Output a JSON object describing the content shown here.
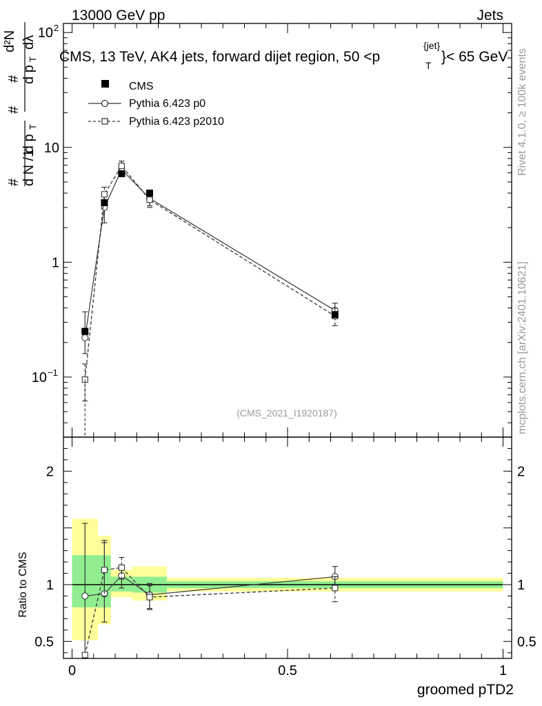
{
  "header": {
    "energy_label": "13000 GeV pp",
    "category_label": "Jets",
    "title_prefix": "CMS, 13 TeV, AK4 jets, forward dijet region, 50 <p",
    "title_sup": "{jet}",
    "title_sub": "T",
    "title_suffix": "}< 65 GeV",
    "analysis_tag": "(CMS_2021_I1920187)"
  },
  "side_labels": {
    "rivet": "Rivet 4.1.0, ≥ 100k events",
    "mcplots": "mcplots.cern.ch [arXiv:2401.10621]"
  },
  "chart_data": [
    {
      "type": "line",
      "scale": "log",
      "ylabel": "1/(dN/dpT) d²N/(dpT dλ)",
      "ylim": [
        0.03,
        120
      ],
      "xlim": [
        -0.02,
        1.02
      ],
      "yticks": [
        {
          "value": 100,
          "label": "10",
          "sup": "2"
        },
        {
          "value": 10,
          "label": "10",
          "sup": ""
        },
        {
          "value": 1,
          "label": "1",
          "sup": ""
        },
        {
          "value": 0.1,
          "label": "10",
          "sup": "−1"
        }
      ],
      "legend": [
        {
          "name": "CMS",
          "marker": "filled-square"
        },
        {
          "name": "Pythia 6.423 p0",
          "marker": "open-circle"
        },
        {
          "name": "Pythia 6.423 p2010",
          "marker": "open-square"
        }
      ],
      "series": [
        {
          "name": "CMS",
          "x": [
            0.03,
            0.075,
            0.115,
            0.18,
            0.61
          ],
          "y": [
            0.25,
            3.3,
            5.9,
            4.0,
            0.35
          ]
        },
        {
          "name": "Pythia 6.423 p0",
          "x": [
            0.03,
            0.075,
            0.115,
            0.18,
            0.61
          ],
          "y": [
            0.22,
            3.0,
            6.4,
            3.6,
            0.38
          ],
          "err_low": [
            0.16,
            2.2,
            5.6,
            3.1,
            0.33
          ],
          "err_high": [
            0.37,
            3.8,
            7.3,
            4.1,
            0.44
          ]
        },
        {
          "name": "Pythia 6.423 p2010",
          "x": [
            0.03,
            0.075,
            0.115,
            0.18,
            0.61
          ],
          "y": [
            0.095,
            3.9,
            6.9,
            3.5,
            0.34
          ],
          "err_low": [
            0.062,
            3.4,
            6.0,
            3.0,
            0.28
          ],
          "err_high": [
            0.13,
            4.5,
            7.6,
            4.0,
            0.4
          ]
        }
      ],
      "extra_segments": [
        {
          "series": "Pythia 6.423 p2010",
          "x": [
            0.03,
            0.03
          ],
          "y": [
            0.095,
            0.03
          ]
        }
      ]
    },
    {
      "type": "line",
      "ylabel": "Ratio to CMS",
      "xlabel": "groomed pTD2",
      "ylim": [
        0.35,
        2.3
      ],
      "xlim": [
        -0.02,
        1.02
      ],
      "yticks": [
        {
          "value": 2,
          "label": "2"
        },
        {
          "value": 1,
          "label": "1"
        },
        {
          "value": 0.5,
          "label": "0.5"
        }
      ],
      "xticks": [
        {
          "value": 0,
          "label": "0"
        },
        {
          "value": 0.5,
          "label": "0.5"
        },
        {
          "value": 1,
          "label": "1"
        }
      ],
      "bands": [
        {
          "x0": 0.0,
          "x1": 0.06,
          "yellow": [
            0.51,
            1.58
          ],
          "green": [
            0.8,
            1.26
          ]
        },
        {
          "x0": 0.06,
          "x1": 0.09,
          "yellow": [
            0.65,
            1.43
          ],
          "green": [
            0.8,
            1.26
          ]
        },
        {
          "x0": 0.09,
          "x1": 0.14,
          "yellow": [
            0.89,
            1.13
          ],
          "green": [
            0.94,
            1.07
          ]
        },
        {
          "x0": 0.14,
          "x1": 0.22,
          "yellow": [
            0.86,
            1.16
          ],
          "green": [
            0.93,
            1.07
          ]
        },
        {
          "x0": 0.22,
          "x1": 1.0,
          "yellow": [
            0.94,
            1.06
          ],
          "green": [
            0.97,
            1.03
          ]
        }
      ],
      "series": [
        {
          "name": "Pythia 6.423 p0",
          "x": [
            0.03,
            0.075,
            0.115,
            0.18,
            0.61
          ],
          "y": [
            0.9,
            0.92,
            1.08,
            0.91,
            1.07
          ],
          "err_low": [
            0.35,
            0.67,
            0.97,
            0.79,
            0.96
          ],
          "err_high": [
            1.54,
            1.39,
            1.17,
            1.01,
            1.16
          ]
        },
        {
          "name": "Pythia 6.423 p2010",
          "x": [
            0.03,
            0.075,
            0.115,
            0.18,
            0.61
          ],
          "y": [
            0.38,
            1.13,
            1.15,
            0.89,
            0.97
          ],
          "err_low": [
            0.35,
            0.9,
            1.05,
            0.78,
            0.85
          ],
          "err_high": [
            0.38,
            1.37,
            1.24,
            0.99,
            1.07
          ]
        }
      ]
    }
  ]
}
